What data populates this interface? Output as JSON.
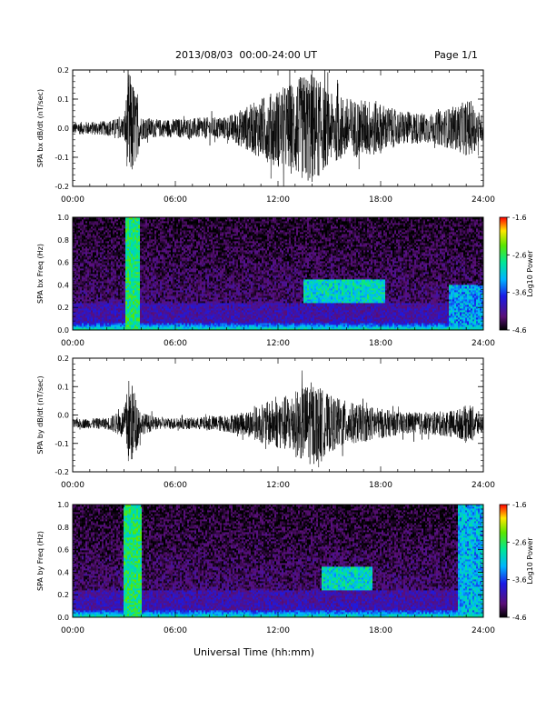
{
  "header": {
    "title": "2013/08/03  00:00-24:00 UT",
    "page": "Page 1/1"
  },
  "chart_data": [
    {
      "type": "line",
      "ylabel": "SPA bx dB/dt (nT/sec)",
      "xlim": [
        0,
        24
      ],
      "ylim": [
        -0.2,
        0.2
      ],
      "xticks": [
        "00:00",
        "06:00",
        "12:00",
        "18:00",
        "24:00"
      ],
      "yticks": [
        "-0.2",
        "-0.1",
        "0.0",
        "0.1",
        "0.2"
      ],
      "ytick_values": [
        -0.2,
        -0.1,
        0.0,
        0.1,
        0.2
      ],
      "baseline": 0.0,
      "envelope_hours": [
        0,
        2,
        3,
        3.3,
        3.6,
        4,
        5,
        7,
        9,
        10,
        11.5,
        12.5,
        14,
        15,
        16.5,
        17.5,
        19,
        21,
        22.5,
        23.2,
        24
      ],
      "envelope_amplitude": [
        0.02,
        0.025,
        0.04,
        0.2,
        0.15,
        0.04,
        0.03,
        0.035,
        0.04,
        0.07,
        0.12,
        0.15,
        0.2,
        0.12,
        0.1,
        0.1,
        0.06,
        0.05,
        0.08,
        0.1,
        0.04
      ]
    },
    {
      "type": "heatmap",
      "ylabel": "SPA bx Freq (Hz)",
      "xlim": [
        0,
        24
      ],
      "ylim": [
        0,
        1.0
      ],
      "xticks": [
        "00:00",
        "06:00",
        "12:00",
        "18:00",
        "24:00"
      ],
      "yticks": [
        "0.0",
        "0.2",
        "0.4",
        "0.6",
        "0.8",
        "1.0"
      ],
      "ytick_values": [
        0.0,
        0.2,
        0.4,
        0.6,
        0.8,
        1.0
      ],
      "colorbar_label": "Log10 Power",
      "colorbar_range": [
        -4.6,
        -1.6
      ],
      "colorbar_ticks": [
        "-1.6",
        "-2.6",
        "-3.6",
        "-4.6"
      ],
      "colorbar_tick_values": [
        -1.6,
        -2.6,
        -3.6,
        -4.6
      ],
      "features": [
        {
          "t0": 3.1,
          "t1": 3.9,
          "f0": 0.0,
          "f1": 1.0,
          "power": -2.7
        },
        {
          "t0": 13.5,
          "t1": 18.3,
          "f0": 0.25,
          "f1": 0.45,
          "power": -3.0
        },
        {
          "t0": 22.0,
          "t1": 24.0,
          "f0": 0.0,
          "f1": 0.4,
          "power": -3.3
        }
      ]
    },
    {
      "type": "line",
      "ylabel": "SPA by dB/dt (nT/sec)",
      "xlim": [
        0,
        24
      ],
      "ylim": [
        -0.2,
        0.2
      ],
      "xticks": [
        "00:00",
        "06:00",
        "12:00",
        "18:00",
        "24:00"
      ],
      "yticks": [
        "-0.2",
        "-0.1",
        "0.0",
        "0.1",
        "0.2"
      ],
      "ytick_values": [
        -0.2,
        -0.1,
        0.0,
        0.1,
        0.2
      ],
      "baseline": -0.03,
      "envelope_hours": [
        0,
        2,
        3,
        3.3,
        3.6,
        4,
        5,
        7,
        9,
        10,
        11.5,
        12.5,
        14,
        15,
        16.5,
        17.5,
        19,
        21,
        22.5,
        23.2,
        24
      ],
      "envelope_amplitude": [
        0.015,
        0.02,
        0.05,
        0.17,
        0.12,
        0.04,
        0.02,
        0.02,
        0.03,
        0.04,
        0.08,
        0.1,
        0.15,
        0.1,
        0.07,
        0.06,
        0.04,
        0.04,
        0.05,
        0.07,
        0.03
      ]
    },
    {
      "type": "heatmap",
      "ylabel": "SPA by Freq (Hz)",
      "xlim": [
        0,
        24
      ],
      "ylim": [
        0,
        1.0
      ],
      "xticks": [
        "00:00",
        "06:00",
        "12:00",
        "18:00",
        "24:00"
      ],
      "yticks": [
        "0.0",
        "0.2",
        "0.4",
        "0.6",
        "0.8",
        "1.0"
      ],
      "ytick_values": [
        0.0,
        0.2,
        0.4,
        0.6,
        0.8,
        1.0
      ],
      "colorbar_label": "Log10 Power",
      "colorbar_range": [
        -4.6,
        -1.6
      ],
      "colorbar_ticks": [
        "-1.6",
        "-2.6",
        "-3.6",
        "-4.6"
      ],
      "colorbar_tick_values": [
        -1.6,
        -2.6,
        -3.6,
        -4.6
      ],
      "features": [
        {
          "t0": 3.0,
          "t1": 4.0,
          "f0": 0.0,
          "f1": 1.0,
          "power": -2.7
        },
        {
          "t0": 14.5,
          "t1": 17.5,
          "f0": 0.25,
          "f1": 0.45,
          "power": -3.0
        },
        {
          "t0": 22.5,
          "t1": 24.0,
          "f0": 0.0,
          "f1": 1.0,
          "power": -3.2
        }
      ]
    }
  ],
  "xlabel": "Universal Time (hh:mm)"
}
